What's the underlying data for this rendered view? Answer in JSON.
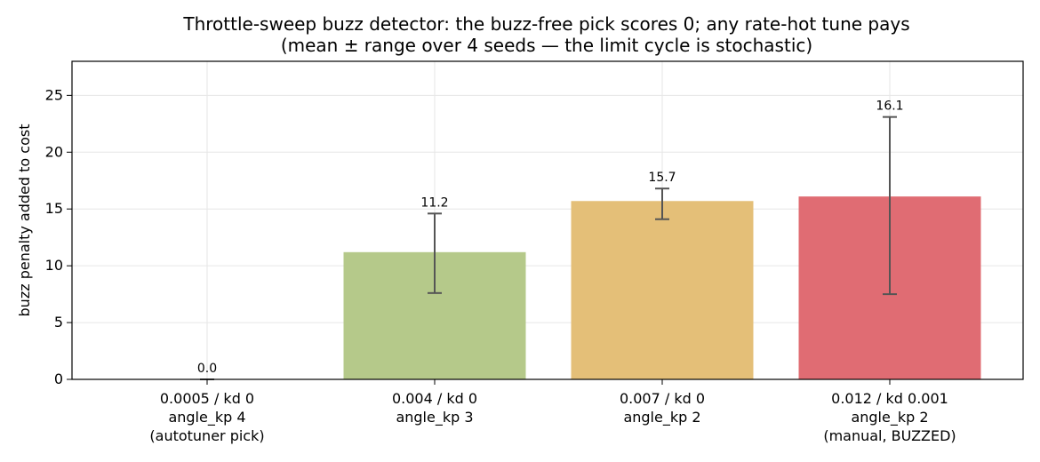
{
  "chart_data": {
    "type": "bar",
    "title": "Throttle-sweep buzz detector: the buzz-free pick scores 0; any rate-hot tune pays",
    "subtitle": "(mean ± range over 4 seeds — the limit cycle is stochastic)",
    "xlabel": "",
    "ylabel": "buzz penalty added to cost",
    "ylim": [
      0,
      28
    ],
    "yticks": [
      0,
      5,
      10,
      15,
      20,
      25
    ],
    "grid": true,
    "categories": [
      [
        "0.0005 / kd 0",
        "angle_kp 4",
        "(autotuner pick)"
      ],
      [
        "0.004 / kd 0",
        "angle_kp 3"
      ],
      [
        "0.007 / kd 0",
        "angle_kp 2"
      ],
      [
        "0.012 / kd 0.001",
        "angle_kp 2",
        "(manual, BUZZED)"
      ]
    ],
    "values": [
      0.0,
      11.2,
      15.7,
      16.1
    ],
    "value_labels": [
      "0.0",
      "11.2",
      "15.7",
      "16.1"
    ],
    "error_low": [
      0.0,
      7.6,
      14.1,
      7.5
    ],
    "error_high": [
      0.0,
      14.6,
      16.8,
      23.1
    ],
    "colors": [
      "#b5c98a",
      "#b5c98a",
      "#e4bf78",
      "#e06c73"
    ]
  }
}
